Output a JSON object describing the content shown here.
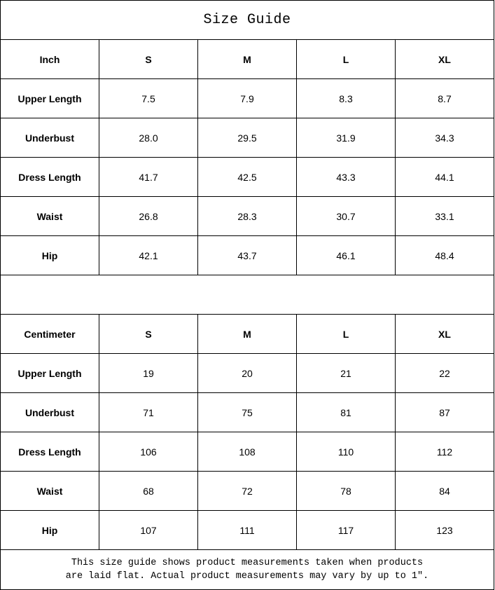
{
  "title": "Size Guide",
  "inch": {
    "header": [
      "Inch",
      "S",
      "M",
      "L",
      "XL"
    ],
    "rows": [
      [
        "Upper Length",
        "7.5",
        "7.9",
        "8.3",
        "8.7"
      ],
      [
        "Underbust",
        "28.0",
        "29.5",
        "31.9",
        "34.3"
      ],
      [
        "Dress Length",
        "41.7",
        "42.5",
        "43.3",
        "44.1"
      ],
      [
        "Waist",
        "26.8",
        "28.3",
        "30.7",
        "33.1"
      ],
      [
        "Hip",
        "42.1",
        "43.7",
        "46.1",
        "48.4"
      ]
    ]
  },
  "cm": {
    "header": [
      "Centimeter",
      "S",
      "M",
      "L",
      "XL"
    ],
    "rows": [
      [
        "Upper Length",
        "19",
        "20",
        "21",
        "22"
      ],
      [
        "Underbust",
        "71",
        "75",
        "81",
        "87"
      ],
      [
        "Dress Length",
        "106",
        "108",
        "110",
        "112"
      ],
      [
        "Waist",
        "68",
        "72",
        "78",
        "84"
      ],
      [
        "Hip",
        "107",
        "111",
        "117",
        "123"
      ]
    ]
  },
  "note": {
    "line1": "This size guide shows product measurements taken when products",
    "line2": "are laid flat. Actual product measurements may vary by up to 1″."
  }
}
